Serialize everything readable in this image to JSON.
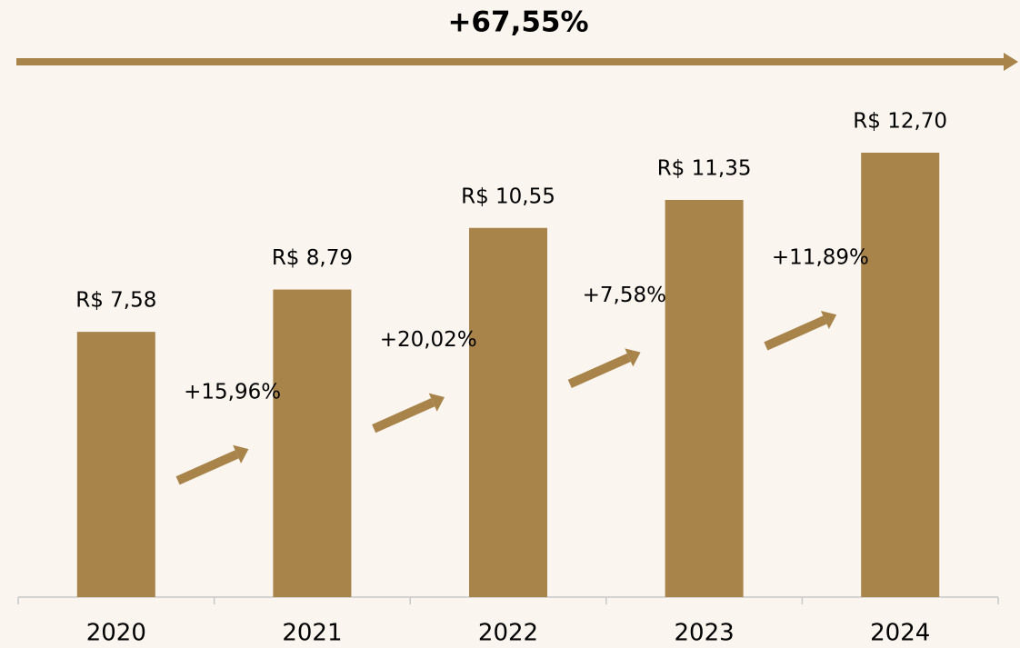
{
  "chart_data": {
    "type": "bar",
    "title": "+67,55%",
    "categories": [
      "2020",
      "2021",
      "2022",
      "2023",
      "2024"
    ],
    "values": [
      7.58,
      8.79,
      10.55,
      11.35,
      12.7
    ],
    "value_labels": [
      "R$ 7,58",
      "R$ 8,79",
      "R$ 10,55",
      "R$ 11,35",
      "R$ 12,70"
    ],
    "annotations": [
      "+15,96%",
      "+20,02%",
      "+7,58%",
      "+11,89%"
    ],
    "color": "#a8834a"
  }
}
